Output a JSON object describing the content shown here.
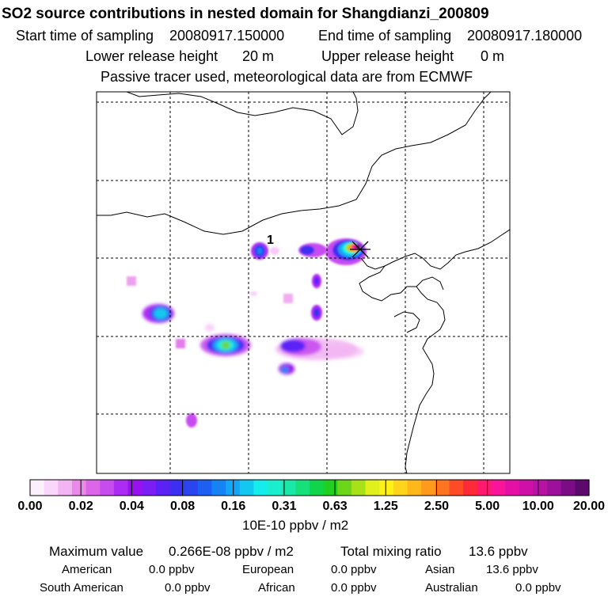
{
  "title": "SO2 source contributions in nested domain for Shangdianzi_200809",
  "sampling": {
    "start_label": "Start time of sampling",
    "start_value": "20080917.150000",
    "end_label": "End time of sampling",
    "end_value": "20080917.180000"
  },
  "release": {
    "lower_label": "Lower release height",
    "lower_value": "20 m",
    "upper_label": "Upper release height",
    "upper_value": "0 m"
  },
  "note": "Passive tracer used, meteorological data are from ECMWF",
  "map": {
    "marker_label": "1",
    "station_marker": "x-star-icon"
  },
  "colorbar": {
    "tick_labels": [
      "0.00",
      "0.02",
      "0.04",
      "0.08",
      "0.16",
      "0.31",
      "0.63",
      "1.25",
      "2.50",
      "5.00",
      "10.00",
      "20.00"
    ],
    "colors": [
      "#fdf0fd",
      "#fad6fa",
      "#f3b4f3",
      "#e98ae9",
      "#dd66e8",
      "#c64cf0",
      "#ad2cf4",
      "#9911ee",
      "#7a1ef5",
      "#5a22f6",
      "#3d2ff2",
      "#2a44f0",
      "#1d5ef3",
      "#1683f5",
      "#14a6f6",
      "#12c8f0",
      "#15ecec",
      "#1aeecf",
      "#1ae8a8",
      "#16e07a",
      "#10d44a",
      "#20d020",
      "#6cd71a",
      "#a8e01a",
      "#dff01c",
      "#fff01a",
      "#ffd41a",
      "#ffb81a",
      "#ff9a1c",
      "#ff7420",
      "#ff4c26",
      "#ff2a38",
      "#ff1a6e",
      "#fa1499",
      "#e410a6",
      "#ce10a8",
      "#b612a4",
      "#9c109c",
      "#7c0c86",
      "#5c086c"
    ],
    "unit": "10E-10 ppbv / m2"
  },
  "stats": {
    "max_label": "Maximum value",
    "max_value": "0.266E-08 ppbv / m2",
    "total_label": "Total mixing ratio",
    "total_value": "13.6 ppbv",
    "regions": [
      {
        "name": "American",
        "value": "0.0 ppbv"
      },
      {
        "name": "European",
        "value": "0.0 ppbv"
      },
      {
        "name": "Asian",
        "value": "13.6 ppbv"
      },
      {
        "name": "South American",
        "value": "0.0 ppbv"
      },
      {
        "name": "African",
        "value": "0.0 ppbv"
      },
      {
        "name": "Australian",
        "value": "0.0 ppbv"
      }
    ]
  }
}
